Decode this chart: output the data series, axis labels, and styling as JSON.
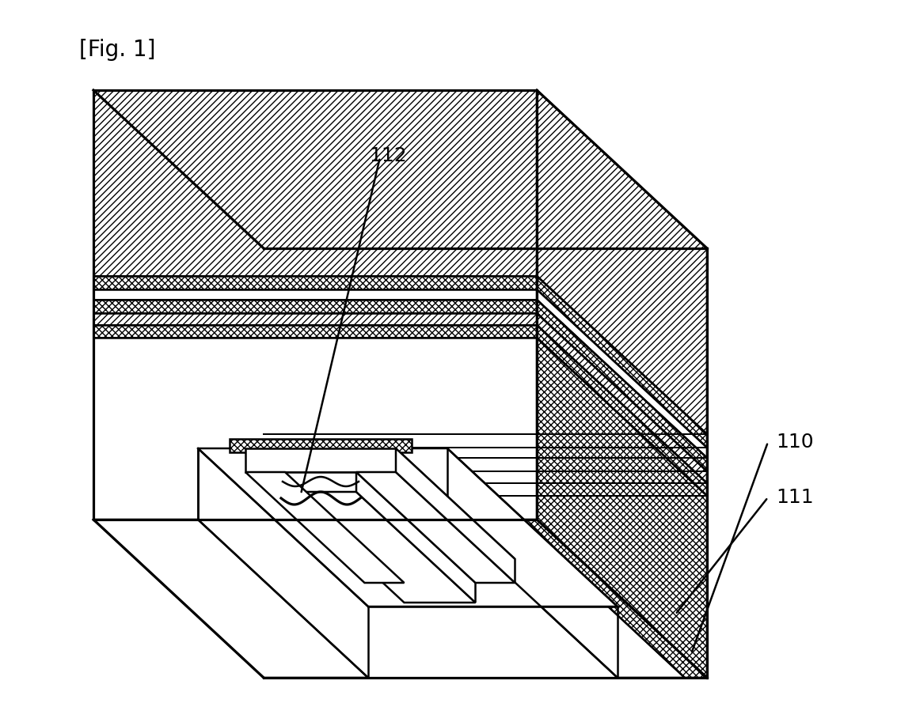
{
  "title": "[Fig. 1]",
  "bg_color": "#ffffff",
  "lw": 1.8,
  "label_112": "112",
  "label_110": "110",
  "label_111": "111",
  "fontsize_title": 20,
  "fontsize_label": 18
}
